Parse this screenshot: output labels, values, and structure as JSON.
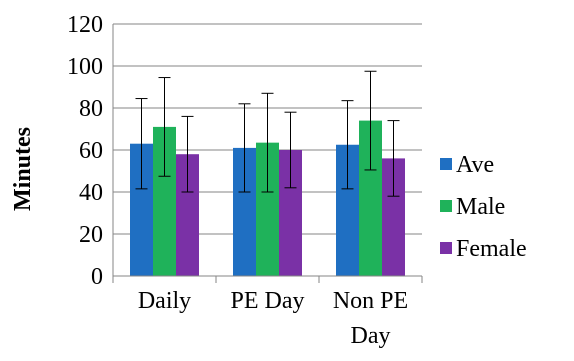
{
  "chart_data": {
    "type": "bar",
    "title": "",
    "xlabel": "",
    "ylabel": "Minutes",
    "ylim": [
      0,
      120
    ],
    "yticks": [
      0,
      20,
      40,
      60,
      80,
      100,
      120
    ],
    "grid": true,
    "legend_position": "right",
    "categories": [
      {
        "lines": [
          "Daily"
        ]
      },
      {
        "lines": [
          "PE Day"
        ]
      },
      {
        "lines": [
          "Non PE",
          "Day"
        ]
      }
    ],
    "series": [
      {
        "name": "Ave",
        "color": "#1f6fc2",
        "values": [
          63,
          61,
          62.5
        ],
        "error": [
          21.5,
          21,
          21
        ]
      },
      {
        "name": "Male",
        "color": "#1fb25a",
        "values": [
          71,
          63.5,
          74
        ],
        "error": [
          23.5,
          23.5,
          23.5
        ]
      },
      {
        "name": "Female",
        "color": "#7a31a6",
        "values": [
          58,
          60,
          56
        ],
        "error": [
          18,
          18,
          18
        ]
      }
    ]
  }
}
